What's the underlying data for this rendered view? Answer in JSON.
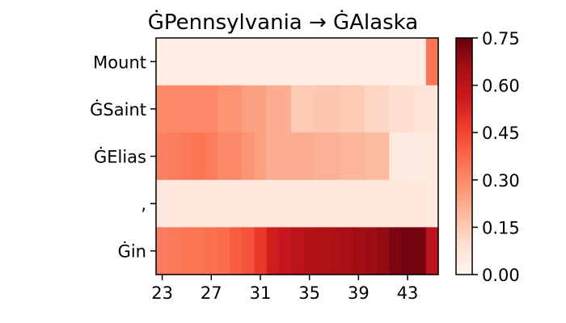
{
  "chart_data": {
    "type": "heatmap",
    "title": "ĠPennsylvania → ĠAlaska",
    "x_start": 23,
    "x_ticks": [
      23,
      27,
      31,
      35,
      39,
      43
    ],
    "y_labels": [
      "Mount",
      "ĠSaint",
      "ĠElias",
      ",",
      "Ġin"
    ],
    "colorbar": {
      "min": 0.0,
      "max": 0.75,
      "ticks": [
        "0.00",
        "0.15",
        "0.30",
        "0.45",
        "0.60",
        "0.75"
      ]
    },
    "values": [
      [
        0.03,
        0.03,
        0.03,
        0.03,
        0.03,
        0.03,
        0.03,
        0.03,
        0.03,
        0.03,
        0.03,
        0.03,
        0.03,
        0.03,
        0.03,
        0.03,
        0.04,
        0.04,
        0.04,
        0.04,
        0.04,
        0.04,
        0.35
      ],
      [
        0.3,
        0.3,
        0.3,
        0.3,
        0.3,
        0.28,
        0.28,
        0.25,
        0.25,
        0.22,
        0.22,
        0.15,
        0.15,
        0.16,
        0.16,
        0.15,
        0.15,
        0.12,
        0.12,
        0.1,
        0.1,
        0.08,
        0.07
      ],
      [
        0.32,
        0.33,
        0.34,
        0.35,
        0.33,
        0.3,
        0.3,
        0.28,
        0.25,
        0.22,
        0.22,
        0.22,
        0.22,
        0.21,
        0.21,
        0.2,
        0.2,
        0.19,
        0.19,
        0.05,
        0.05,
        0.05,
        0.05
      ],
      [
        0.06,
        0.06,
        0.06,
        0.06,
        0.06,
        0.06,
        0.06,
        0.06,
        0.06,
        0.06,
        0.06,
        0.06,
        0.06,
        0.06,
        0.06,
        0.06,
        0.06,
        0.06,
        0.06,
        0.06,
        0.06,
        0.06,
        0.05
      ],
      [
        0.33,
        0.34,
        0.35,
        0.35,
        0.36,
        0.37,
        0.4,
        0.42,
        0.48,
        0.55,
        0.58,
        0.6,
        0.62,
        0.63,
        0.64,
        0.65,
        0.66,
        0.67,
        0.68,
        0.72,
        0.73,
        0.73,
        0.6
      ]
    ]
  }
}
